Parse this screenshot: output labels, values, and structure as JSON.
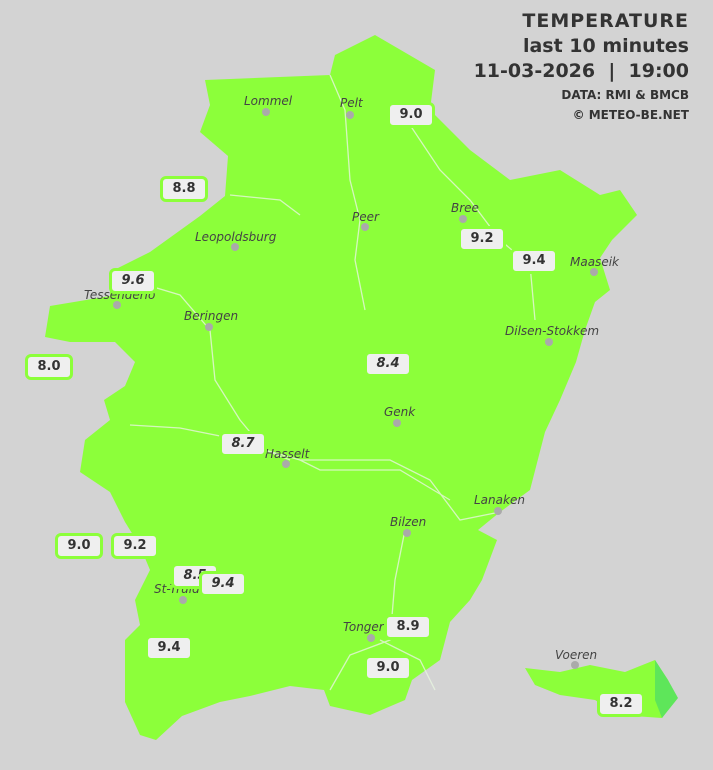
{
  "header": {
    "title": "TEMPERATURE",
    "subtitle": "last 10 minutes",
    "datetime": "11-03-2026  |  19:00",
    "source": "DATA: RMI & BMCB",
    "credit": "© METEO-BE.NET"
  },
  "colors": {
    "background": "#d3d3d3",
    "region_fill": "#8cff3a",
    "east_tip": "#5ee65a",
    "label_border": "#8cff3a"
  },
  "towns": [
    {
      "name": "Lommel"
    },
    {
      "name": "Pelt"
    },
    {
      "name": "Peer"
    },
    {
      "name": "Bree"
    },
    {
      "name": "Leopoldsburg"
    },
    {
      "name": "Maaseik"
    },
    {
      "name": "Tessenderlo"
    },
    {
      "name": "Beringen"
    },
    {
      "name": "Dilsen-Stokkem"
    },
    {
      "name": "Genk"
    },
    {
      "name": "Hasselt"
    },
    {
      "name": "Lanaken"
    },
    {
      "name": "Bilzen"
    },
    {
      "name": "St-Truiden"
    },
    {
      "name": "Tongeren"
    },
    {
      "name": "Voeren"
    }
  ],
  "readings": [
    {
      "value": "9.0",
      "italic": false
    },
    {
      "value": "8.8",
      "italic": false
    },
    {
      "value": "9.2",
      "italic": false
    },
    {
      "value": "9.4",
      "italic": false
    },
    {
      "value": "9.6",
      "italic": true
    },
    {
      "value": "8.0",
      "italic": false
    },
    {
      "value": "8.4",
      "italic": true
    },
    {
      "value": "8.7",
      "italic": true
    },
    {
      "value": "9.0",
      "italic": false
    },
    {
      "value": "9.2",
      "italic": false
    },
    {
      "value": "8.5",
      "italic": true
    },
    {
      "value": "9.4",
      "italic": true
    },
    {
      "value": "9.4",
      "italic": false
    },
    {
      "value": "8.9",
      "italic": false
    },
    {
      "value": "9.0",
      "italic": false
    },
    {
      "value": "8.2",
      "italic": false
    }
  ]
}
